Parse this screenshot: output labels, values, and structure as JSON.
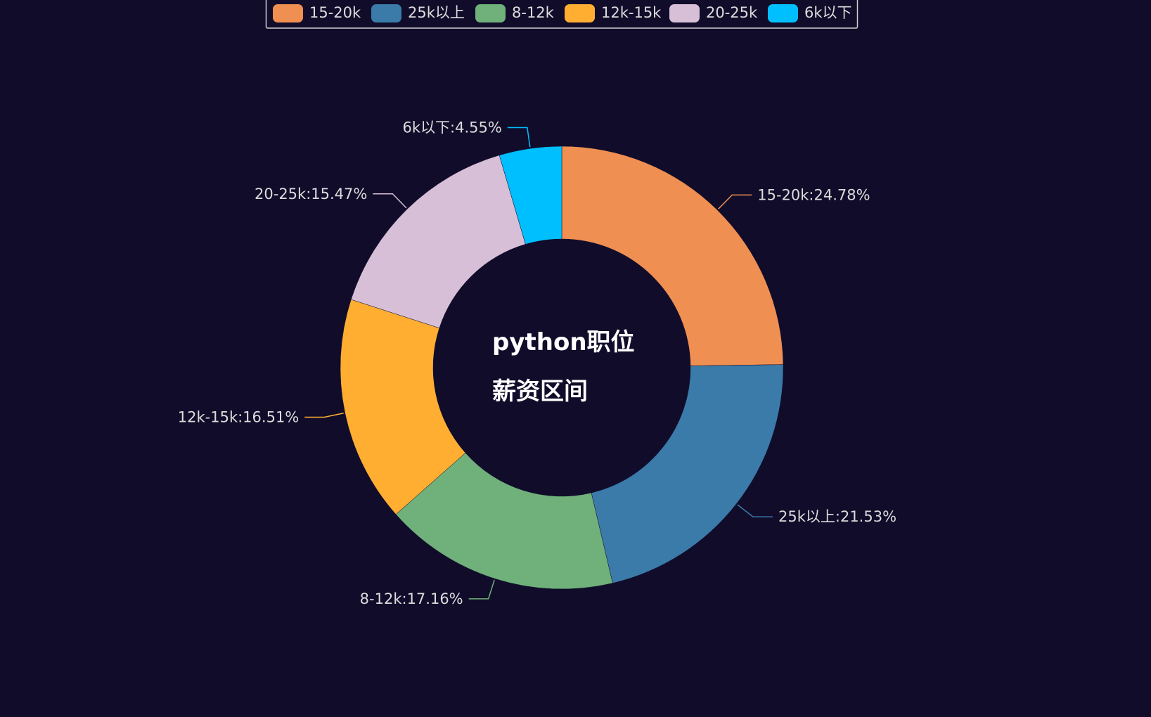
{
  "chart_data": {
    "type": "pie",
    "variant": "donut",
    "title_lines": [
      "python职位",
      "薪资区间"
    ],
    "slices": [
      {
        "name": "15-20k",
        "value": 24.78,
        "label": "15-20k:24.78%",
        "color": "#ef8f52"
      },
      {
        "name": "25k以上",
        "value": 21.53,
        "label": "25k以上:21.53%",
        "color": "#3b7ba9"
      },
      {
        "name": "8-12k",
        "value": 17.16,
        "label": "8-12k:17.16%",
        "color": "#6fb07b"
      },
      {
        "name": "12k-15k",
        "value": 16.51,
        "label": "12k-15k:16.51%",
        "color": "#ffae32"
      },
      {
        "name": "20-25k",
        "value": 15.47,
        "label": "20-25k:15.47%",
        "color": "#d8bfd8"
      },
      {
        "name": "6k以下",
        "value": 4.55,
        "label": "6k以下:4.55%",
        "color": "#00bfff"
      }
    ],
    "legend_position": "top-center",
    "grid": false
  },
  "theme": {
    "background": "#100c2a",
    "label_color": "#dcdcdc",
    "title_color": "#ffffff"
  }
}
